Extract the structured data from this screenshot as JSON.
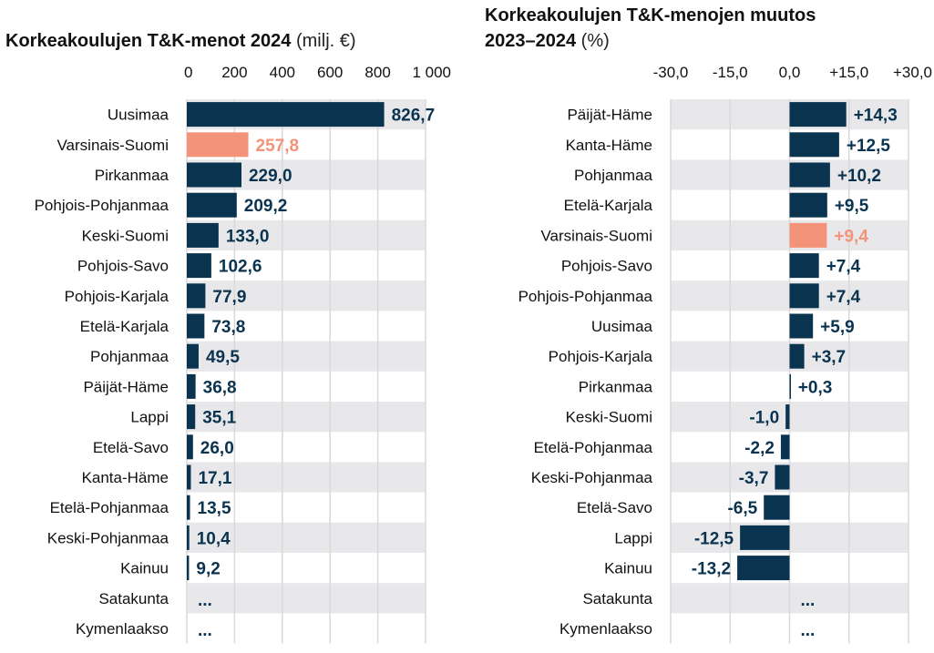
{
  "colors": {
    "bar": "#0a3350",
    "highlight": "#f4937a",
    "band": "#e8e8ea",
    "grid": "#d9d9d9"
  },
  "chart_data": [
    {
      "type": "bar",
      "orientation": "horizontal",
      "title": "Korkeakoulujen T&K-menot 2024",
      "unit": "(milj. €)",
      "xlim": [
        0,
        1000
      ],
      "ticks": [
        0,
        200,
        400,
        600,
        800,
        1000
      ],
      "tick_labels": [
        "0",
        "200",
        "400",
        "600",
        "800",
        "1 000"
      ],
      "highlight": "Varsinais-Suomi",
      "categories": [
        "Uusimaa",
        "Varsinais-Suomi",
        "Pirkanmaa",
        "Pohjois-Pohjanmaa",
        "Keski-Suomi",
        "Pohjois-Savo",
        "Pohjois-Karjala",
        "Etelä-Karjala",
        "Pohjanmaa",
        "Päijät-Häme",
        "Lappi",
        "Etelä-Savo",
        "Kanta-Häme",
        "Etelä-Pohjanmaa",
        "Keski-Pohjanmaa",
        "Kainuu",
        "Satakunta",
        "Kymenlaakso"
      ],
      "values": [
        826.7,
        257.8,
        229.0,
        209.2,
        133.0,
        102.6,
        77.9,
        73.8,
        49.5,
        36.8,
        35.1,
        26.0,
        17.1,
        13.5,
        10.4,
        9.2,
        null,
        null
      ],
      "labels": [
        "826,7",
        "257,8",
        "229,0",
        "209,2",
        "133,0",
        "102,6",
        "77,9",
        "73,8",
        "49,5",
        "36,8",
        "35,1",
        "26,0",
        "17,1",
        "13,5",
        "10,4",
        "9,2",
        "...",
        "..."
      ],
      "grid": true
    },
    {
      "type": "bar",
      "orientation": "horizontal",
      "title": "Korkeakoulujen T&K-menojen muutos 2023–2024",
      "title_lines": [
        "Korkeakoulujen T&K-menojen muutos",
        "2023–2024"
      ],
      "unit": "(%)",
      "xlim": [
        -30,
        30
      ],
      "ticks": [
        -30,
        -15,
        0,
        15,
        30
      ],
      "tick_labels": [
        "-30,0",
        "-15,0",
        "0,0",
        "+15,0",
        "+30,0"
      ],
      "highlight": "Varsinais-Suomi",
      "categories": [
        "Päijät-Häme",
        "Kanta-Häme",
        "Pohjanmaa",
        "Etelä-Karjala",
        "Varsinais-Suomi",
        "Pohjois-Savo",
        "Pohjois-Pohjanmaa",
        "Uusimaa",
        "Pohjois-Karjala",
        "Pirkanmaa",
        "Keski-Suomi",
        "Etelä-Pohjanmaa",
        "Keski-Pohjanmaa",
        "Etelä-Savo",
        "Lappi",
        "Kainuu",
        "Satakunta",
        "Kymenlaakso"
      ],
      "values": [
        14.3,
        12.5,
        10.2,
        9.5,
        9.4,
        7.4,
        7.4,
        5.9,
        3.7,
        0.3,
        -1.0,
        -2.2,
        -3.7,
        -6.5,
        -12.5,
        -13.2,
        null,
        null
      ],
      "labels": [
        "+14,3",
        "+12,5",
        "+10,2",
        "+9,5",
        "+9,4",
        "+7,4",
        "+7,4",
        "+5,9",
        "+3,7",
        "+0,3",
        "-1,0",
        "-2,2",
        "-3,7",
        "-6,5",
        "-12,5",
        "-13,2",
        "...",
        "..."
      ],
      "grid": true
    }
  ]
}
